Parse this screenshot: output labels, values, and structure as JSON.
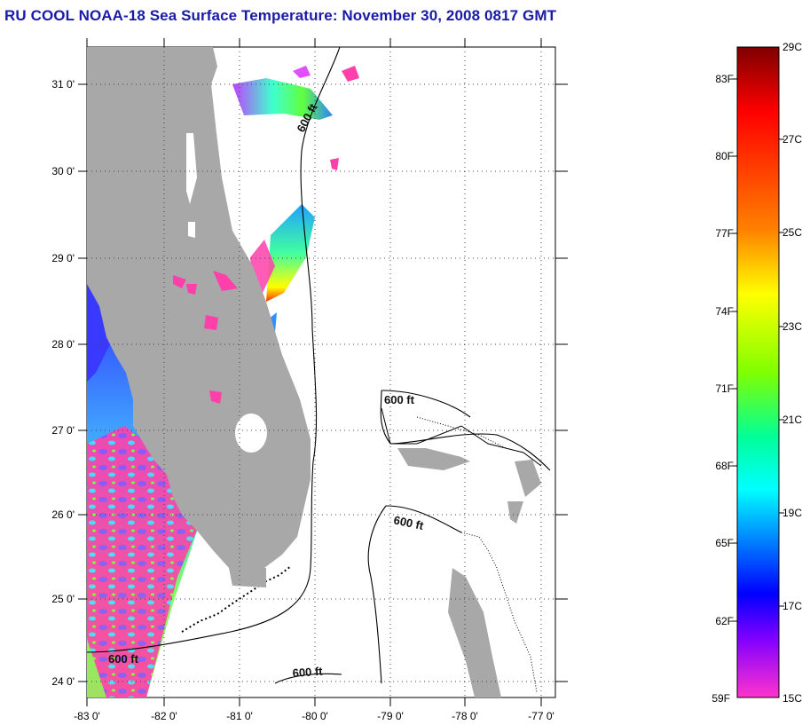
{
  "title": "RU COOL  NOAA-18  Sea Surface Temperature:  November 30, 2008 0817 GMT",
  "map": {
    "latitude_labels": [
      "31 0'",
      "30 0'",
      "29 0'",
      "28 0'",
      "27 0'",
      "26 0'",
      "25 0'",
      "24 0'"
    ],
    "longitude_labels": [
      "-83 0'",
      "-82 0'",
      "-81 0'",
      "-80 0'",
      "-79 0'",
      "-78 0'",
      "-77 0'"
    ],
    "contour_labels": [
      "600 ft",
      "600 ft",
      "600 ft",
      "600 ft",
      "600 ft"
    ],
    "colors": {
      "land": "#a8a8a8",
      "no_data_ocean": "#ffffff",
      "cloud_mask": "#ff3faa"
    }
  },
  "colorbar": {
    "fahrenheit_labels": [
      "83F",
      "80F",
      "77F",
      "74F",
      "71F",
      "68F",
      "65F",
      "62F",
      "59F"
    ],
    "celsius_labels": [
      "29C",
      "27C",
      "25C",
      "23C",
      "21C",
      "19C",
      "17C",
      "15C"
    ],
    "gradient_colors": [
      "#7f0000",
      "#ff0000",
      "#ff8000",
      "#ffff00",
      "#80ff00",
      "#00ff80",
      "#00ffff",
      "#0080ff",
      "#0000ff",
      "#8000ff",
      "#ff33cc"
    ]
  }
}
